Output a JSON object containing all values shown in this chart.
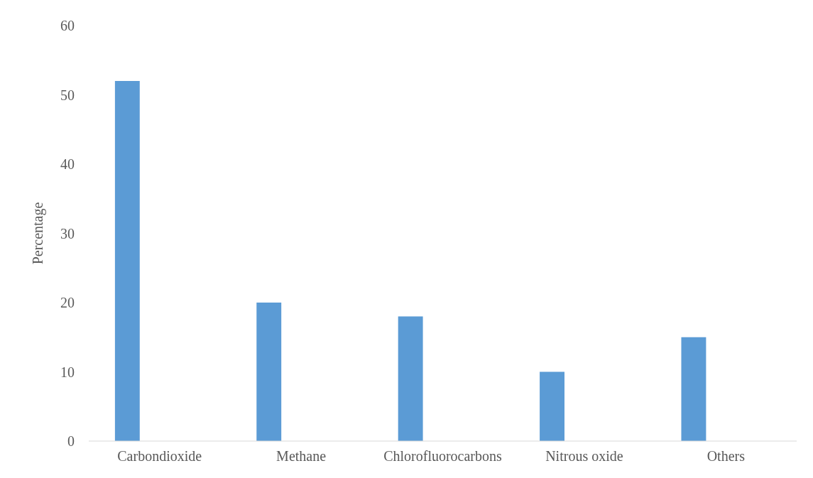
{
  "chart_data": {
    "type": "bar",
    "ylabel": "Percentage",
    "categories": [
      "Carbondioxide",
      "Methane",
      "Chlorofluorocarbons",
      "Nitrous oxide",
      "Others"
    ],
    "values": [
      52,
      20,
      18,
      10,
      15
    ],
    "color": "#5b9bd5",
    "ylim": [
      0,
      60
    ],
    "yticks": [
      0,
      10,
      20,
      30,
      40,
      50,
      60
    ],
    "grid": false
  }
}
